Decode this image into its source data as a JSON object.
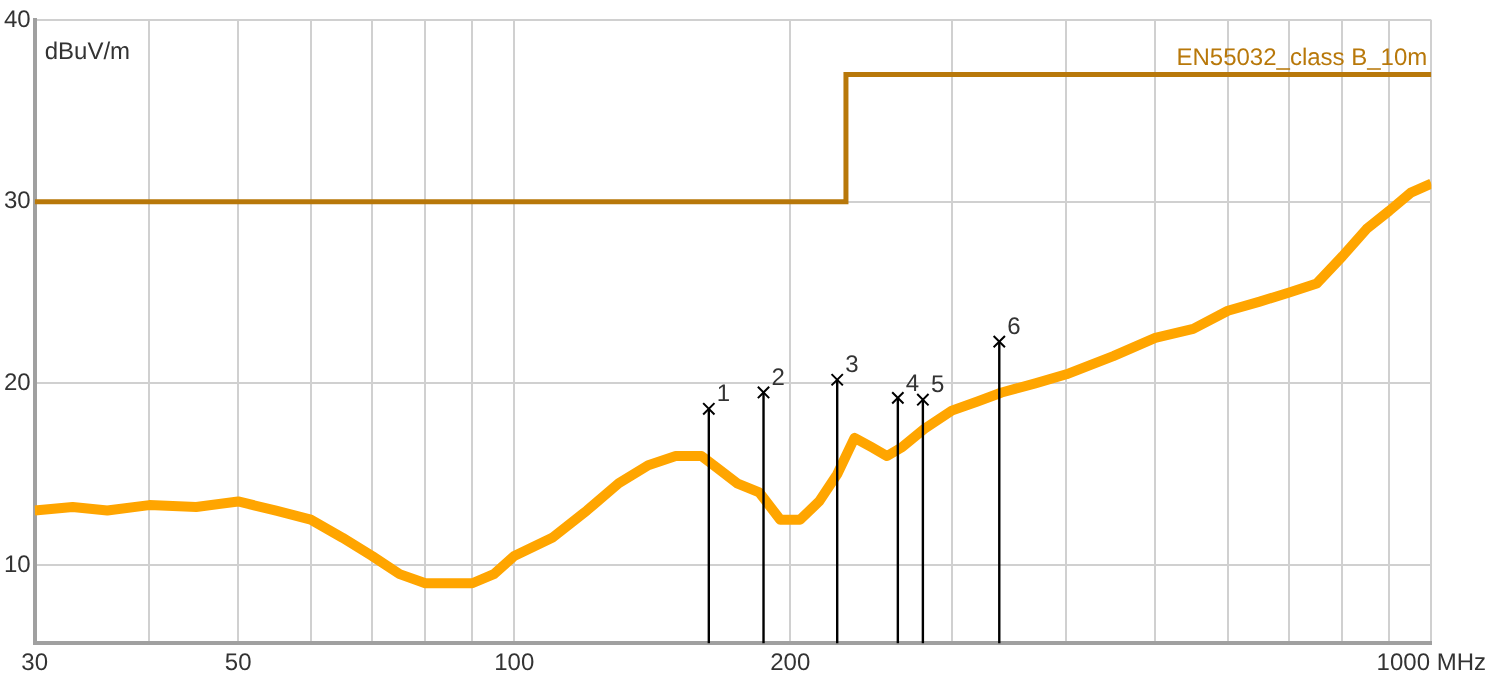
{
  "chart_data": {
    "type": "line",
    "ylabel": "dBuV/m",
    "xlim": [
      30,
      1000
    ],
    "ylim": [
      5.7,
      40
    ],
    "xticks": [
      30,
      {
        "value": 40,
        "label": null
      },
      50,
      {
        "value": 60,
        "label": null
      },
      {
        "value": 70,
        "label": null
      },
      {
        "value": 80,
        "label": null
      },
      {
        "value": 90,
        "label": null
      },
      100,
      200,
      {
        "value": 300,
        "label": null
      },
      {
        "value": 400,
        "label": null
      },
      {
        "value": 500,
        "label": null
      },
      {
        "value": 600,
        "label": null
      },
      {
        "value": 700,
        "label": null
      },
      {
        "value": 800,
        "label": null
      },
      {
        "value": 900,
        "label": null
      },
      {
        "value": 1000,
        "label": "1000 MHz"
      }
    ],
    "yticks": [
      10,
      20,
      30,
      40
    ],
    "grid": true,
    "legend": false,
    "log": "x",
    "series": [
      {
        "color": "#ffa500",
        "x": [
          30,
          33,
          36,
          40,
          45,
          50,
          55,
          60,
          65,
          70,
          75,
          80,
          85,
          90,
          95,
          100,
          110,
          120,
          130,
          140,
          150,
          160,
          165,
          175,
          185,
          195,
          205,
          215,
          225,
          235,
          245,
          255,
          265,
          280,
          300,
          320,
          340,
          370,
          400,
          450,
          500,
          550,
          600,
          650,
          700,
          750,
          800,
          850,
          900,
          950,
          1000
        ],
        "values": [
          13,
          13.2,
          13,
          13.3,
          13.2,
          13.5,
          13,
          12.5,
          11.5,
          10.5,
          9.5,
          9,
          9,
          9,
          9.5,
          10.5,
          11.5,
          13,
          14.5,
          15.5,
          16,
          16,
          15.5,
          14.5,
          14,
          12.5,
          12.5,
          13.5,
          15,
          17,
          16.5,
          16,
          16.5,
          17.5,
          18.5,
          19,
          19.5,
          20,
          20.5,
          21.5,
          22.5,
          23,
          24,
          24.5,
          25,
          25.5,
          27,
          28.5,
          29.5,
          30.5,
          31
        ]
      },
      {
        "type": "step",
        "name": "EN55032_class B_10m",
        "color": "#b8780a",
        "x": [
          30,
          230,
          1000
        ],
        "values": [
          30,
          37,
          37
        ]
      },
      {
        "type": "lollipop",
        "color": "#000000",
        "marker": "cross",
        "x": [
          163,
          187,
          225,
          262,
          279,
          338
        ],
        "values": [
          18.6,
          19.5,
          20.2,
          19.2,
          19.1,
          22.3
        ]
      }
    ],
    "annotations": [
      {
        "text": "1",
        "x": 163,
        "y": 18.6
      },
      {
        "text": "2",
        "x": 187,
        "y": 19.5
      },
      {
        "text": "3",
        "x": 225,
        "y": 20.2
      },
      {
        "text": "4",
        "x": 262,
        "y": 19.2
      },
      {
        "text": "5",
        "x": 279,
        "y": 19.1
      },
      {
        "text": "6",
        "x": 338,
        "y": 22.3
      }
    ]
  }
}
